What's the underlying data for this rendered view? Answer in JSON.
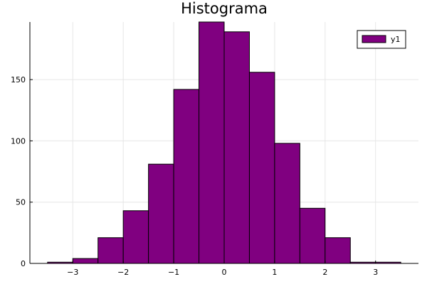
{
  "chart_data": {
    "type": "bar",
    "title": "Histograma",
    "xlabel": "",
    "ylabel": "",
    "bin_edges": [
      -3.5,
      -3.0,
      -2.5,
      -2.0,
      -1.5,
      -1.0,
      -0.5,
      0.0,
      0.5,
      1.0,
      1.5,
      2.0,
      2.5,
      3.0,
      3.5
    ],
    "series": [
      {
        "name": "y1",
        "values": [
          1,
          4,
          21,
          43,
          81,
          142,
          197,
          189,
          156,
          98,
          45,
          21,
          1,
          1
        ],
        "color": "#800080"
      }
    ],
    "xlim": [
      -3.85,
      3.85
    ],
    "ylim": [
      0,
      197
    ],
    "xticks": [
      -3,
      -2,
      -1,
      0,
      1,
      2,
      3
    ],
    "xtick_labels": [
      "−3",
      "−2",
      "−1",
      "0",
      "1",
      "2",
      "3"
    ],
    "yticks": [
      0,
      50,
      100,
      150
    ],
    "ytick_labels": [
      "0",
      "50",
      "100",
      "150"
    ],
    "grid": true,
    "legend_position": "top-right"
  }
}
